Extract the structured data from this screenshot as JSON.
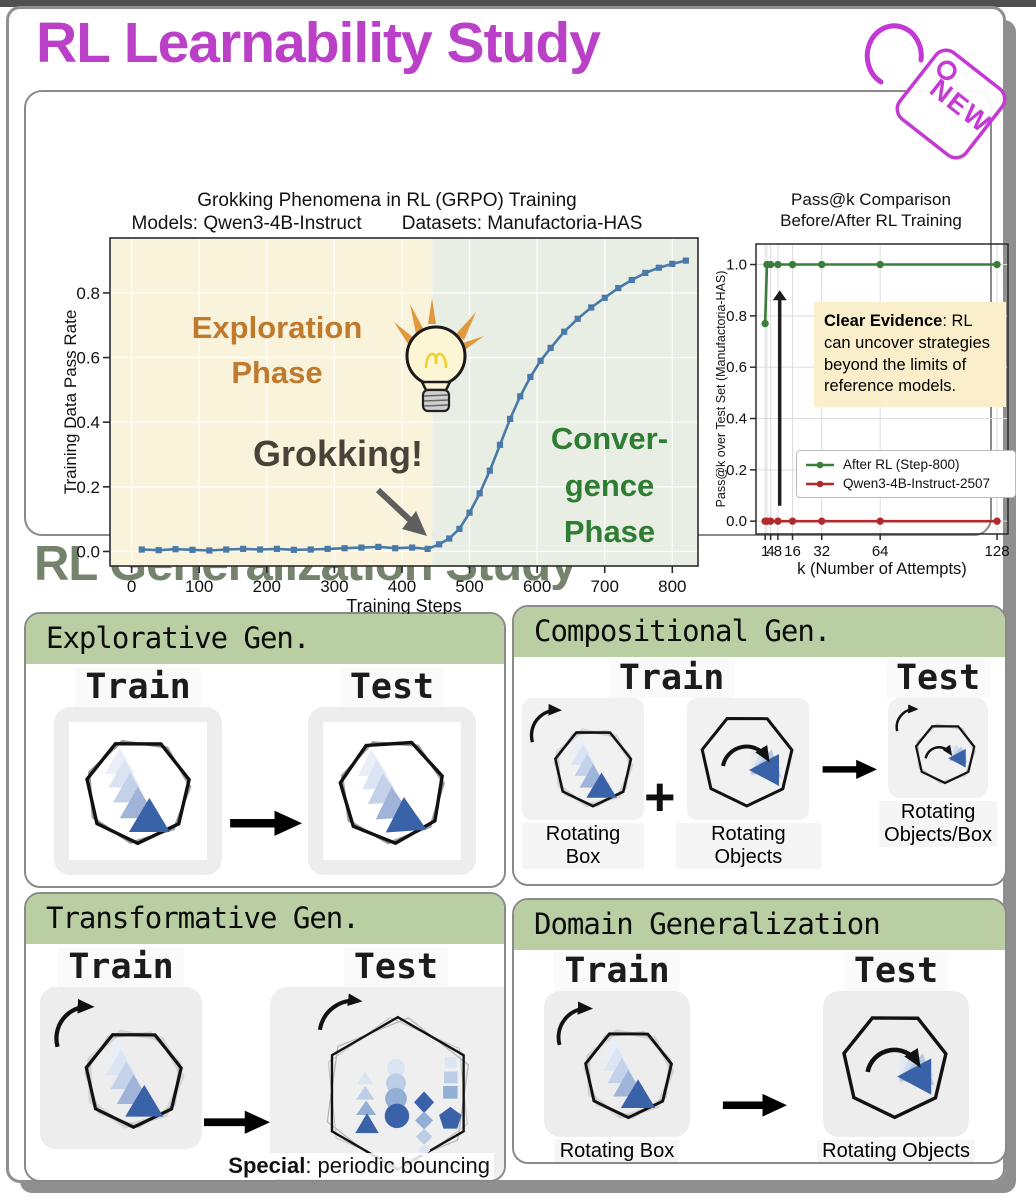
{
  "header": {
    "title": "RL Learnability Study",
    "new_badge": "NEW"
  },
  "colors": {
    "title_magenta": "#bb40c8",
    "section_green": "#76836c",
    "panel_header_green": "#b9cfa3",
    "triangle_blue": "#3a62a8",
    "exploration_text": "#bf7a2e",
    "convergence_text": "#2e7d32",
    "grokking_text": "#4a4238",
    "evidence_bg": "#faeecb"
  },
  "chart_data": [
    {
      "type": "line",
      "title": "Grokking Phenomena in RL (GRPO) Training",
      "subtitle_models": "Models: Qwen3-4B-Instruct",
      "subtitle_datasets": "Datasets: Manufactoria-HAS",
      "xlabel": "Training Steps",
      "ylabel": "Training Data Pass Rate",
      "xticks": [
        0,
        100,
        200,
        300,
        400,
        500,
        600,
        700,
        800
      ],
      "yticks": [
        0.0,
        0.2,
        0.4,
        0.6,
        0.8
      ],
      "xlim": [
        -32,
        838
      ],
      "ylim": [
        -0.045,
        0.97
      ],
      "phase_split": 445,
      "colors": {
        "exploration_bg": "#faf3dc",
        "convergence_bg": "#e8eee4"
      },
      "annotations": {
        "exploration": "Exploration\nPhase",
        "convergence": "Conver-\ngence\nPhase",
        "grokking": "Grokking!"
      },
      "series": [
        {
          "name": "Training Data Pass Rate",
          "color": "#4879a9",
          "marker": "square",
          "x": [
            15,
            40,
            65,
            90,
            115,
            140,
            165,
            190,
            215,
            240,
            265,
            290,
            315,
            340,
            365,
            390,
            415,
            438,
            455,
            470,
            485,
            500,
            515,
            530,
            545,
            560,
            575,
            590,
            605,
            620,
            640,
            660,
            680,
            700,
            720,
            740,
            760,
            780,
            800,
            820
          ],
          "y": [
            0.006,
            0.004,
            0.007,
            0.005,
            0.003,
            0.006,
            0.008,
            0.006,
            0.008,
            0.005,
            0.006,
            0.008,
            0.01,
            0.012,
            0.014,
            0.01,
            0.012,
            0.008,
            0.022,
            0.04,
            0.07,
            0.12,
            0.18,
            0.25,
            0.33,
            0.41,
            0.48,
            0.54,
            0.59,
            0.63,
            0.68,
            0.72,
            0.755,
            0.785,
            0.815,
            0.84,
            0.862,
            0.878,
            0.89,
            0.9
          ]
        }
      ]
    },
    {
      "type": "line",
      "title_line1": "Pass@k Comparison",
      "title_line2": "Before/After RL Training",
      "xlabel": "k (Number of Attempts)",
      "ylabel": "Pass@k over Test Set (Manufactoria-HAS)",
      "xticks": [
        1,
        4,
        8,
        16,
        32,
        64,
        128
      ],
      "grid_xticks": [
        1,
        2,
        4,
        8,
        16,
        32,
        64,
        128
      ],
      "yticks": [
        0.0,
        0.2,
        0.4,
        0.6,
        0.8,
        1.0
      ],
      "xlim": [
        -4,
        134
      ],
      "ylim": [
        -0.05,
        1.08
      ],
      "annotations": {
        "evidence_title": "Clear Evidence",
        "evidence_body": ": RL can uncover strategies beyond the limits of reference models.",
        "arrow_k": 9,
        "arrow_from": 0.06,
        "arrow_to": 0.9
      },
      "series": [
        {
          "name": "After RL (Step-800)",
          "color": "#3b7d3b",
          "marker": "circle",
          "x": [
            1,
            2,
            4,
            8,
            16,
            32,
            64,
            128
          ],
          "y": [
            0.77,
            1.0,
            1.0,
            1.0,
            1.0,
            1.0,
            1.0,
            1.0
          ]
        },
        {
          "name": "Qwen3-4B-Instruct-2507",
          "color": "#b02c2c",
          "marker": "circle",
          "x": [
            1,
            2,
            4,
            8,
            16,
            32,
            64,
            128
          ],
          "y": [
            0.0,
            0.0,
            0.0,
            0.0,
            0.0,
            0.0,
            0.0,
            0.0
          ]
        }
      ]
    }
  ],
  "generalization": {
    "title": "RL Generalization Study",
    "panels": [
      {
        "title": "Explorative Gen.",
        "train_label": "Train",
        "test_label": "Test"
      },
      {
        "title": "Compositional Gen.",
        "train_label": "Train",
        "test_label": "Test",
        "plus": "+",
        "fig1_caption": "Rotating Box",
        "fig2_caption": "Rotating Objects",
        "fig3_caption": "Rotating\nObjects/Box"
      },
      {
        "title": "Transformative Gen.",
        "train_label": "Train",
        "test_label": "Test",
        "special_bold": "Special",
        "special_rest": ": periodic bouncing"
      },
      {
        "title": "Domain Generalization",
        "train_label": "Train",
        "test_label": "Test",
        "fig1_caption": "Rotating Box",
        "fig2_caption": "Rotating Objects"
      }
    ]
  }
}
